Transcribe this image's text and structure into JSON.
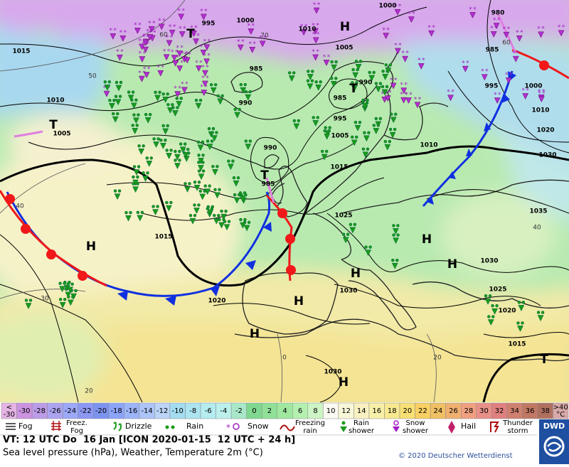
{
  "map": {
    "pressure_labels": [
      "995",
      "1000",
      "1010",
      "1000",
      "980",
      "1015",
      "1005",
      "985",
      "985",
      "990",
      "985",
      "990",
      "995",
      "1000",
      "1010",
      "995",
      "1010",
      "1005",
      "1005",
      "1020",
      "990",
      "1010",
      "1030",
      "1015",
      "985",
      "1025",
      "1035",
      "1015",
      "1030",
      "1030",
      "1025",
      "1020",
      "1020",
      "1015",
      "1030"
    ],
    "temperature_labels": [
      "60",
      "50",
      "40",
      "30",
      "20",
      "0",
      "20",
      "40",
      "60",
      "70"
    ],
    "systems": [
      "H",
      "T",
      "T",
      "T",
      "T",
      "H",
      "H",
      "H",
      "H",
      "H",
      "H",
      "T",
      "H"
    ]
  },
  "temperature_scale": {
    "ends": {
      "low": {
        "lines": [
          "<",
          "-30"
        ],
        "color": "#e4b4e4"
      },
      "high": {
        "lines": [
          ">40",
          "°C"
        ],
        "color": "#d8a8a8"
      }
    },
    "steps": [
      {
        "value": -30,
        "color": "#cc94e0"
      },
      {
        "value": -28,
        "color": "#bc9ce8"
      },
      {
        "value": -26,
        "color": "#aca4f0"
      },
      {
        "value": -24,
        "color": "#9ca8f8"
      },
      {
        "value": -22,
        "color": "#8c98f4"
      },
      {
        "value": -20,
        "color": "#7c94f0"
      },
      {
        "value": -18,
        "color": "#8ca4f8"
      },
      {
        "value": -16,
        "color": "#9cb4f8"
      },
      {
        "value": -14,
        "color": "#acc4f8"
      },
      {
        "value": -12,
        "color": "#bcd4f8"
      },
      {
        "value": -10,
        "color": "#a4dcf0"
      },
      {
        "value": -8,
        "color": "#ace4f0"
      },
      {
        "value": -6,
        "color": "#b4ecf0"
      },
      {
        "value": -4,
        "color": "#bcf0ec"
      },
      {
        "value": -2,
        "color": "#a8e8c8"
      },
      {
        "value": 0,
        "color": "#80d890"
      },
      {
        "value": 2,
        "color": "#90e098"
      },
      {
        "value": 4,
        "color": "#a0e8a0"
      },
      {
        "value": 6,
        "color": "#b4f0b0"
      },
      {
        "value": 8,
        "color": "#ccf4c4"
      },
      {
        "value": 10,
        "color": "#fafaf2"
      },
      {
        "value": 12,
        "color": "#f8f8d8"
      },
      {
        "value": 14,
        "color": "#f8f0c0"
      },
      {
        "value": 16,
        "color": "#f8f0a8"
      },
      {
        "value": 18,
        "color": "#f8e890"
      },
      {
        "value": 20,
        "color": "#f8e074"
      },
      {
        "value": 22,
        "color": "#f8d064"
      },
      {
        "value": 24,
        "color": "#f0c064"
      },
      {
        "value": 26,
        "color": "#f0b070"
      },
      {
        "value": 28,
        "color": "#f0a080"
      },
      {
        "value": 30,
        "color": "#e89088"
      },
      {
        "value": 32,
        "color": "#e08080"
      },
      {
        "value": 34,
        "color": "#d08070"
      },
      {
        "value": 36,
        "color": "#c07864"
      },
      {
        "value": 38,
        "color": "#b07060"
      }
    ]
  },
  "legend": [
    {
      "lines": [
        "Fog"
      ]
    },
    {
      "lines": [
        "Freez.",
        "Fog"
      ]
    },
    {
      "lines": [
        "Drizzle"
      ]
    },
    {
      "lines": [
        "Rain"
      ]
    },
    {
      "lines": [
        "Snow"
      ]
    },
    {
      "lines": [
        "Freezing",
        "rain"
      ]
    },
    {
      "lines": [
        "Rain",
        "shower"
      ]
    },
    {
      "lines": [
        "Snow",
        "shower"
      ]
    },
    {
      "lines": [
        "Hail"
      ]
    },
    {
      "lines": [
        "Thunder",
        "storm"
      ]
    }
  ],
  "footer": {
    "valid_time": "VT: 12 UTC Do  16 Jan [ICON 2020-01-15  12 UTC + 24 h]",
    "description": "Sea level pressure (hPa), Weather, Temperature 2m (°C)",
    "copyright": "© 2020 Deutscher Wetterdienst",
    "logo": "DWD"
  }
}
